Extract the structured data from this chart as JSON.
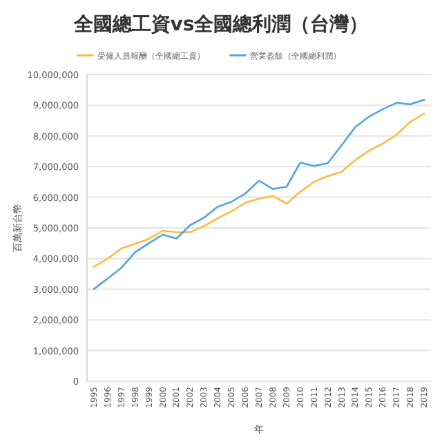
{
  "chart_data": {
    "type": "line",
    "title": "全國總工資vs全國總利潤（台灣）",
    "xlabel": "年",
    "ylabel": "百萬新台幣",
    "categories": [
      "1995",
      "1996",
      "1997",
      "1998",
      "1999",
      "2000",
      "2001",
      "2002",
      "2003",
      "2004",
      "2005",
      "2006",
      "2007",
      "2008",
      "2009",
      "2010",
      "2011",
      "2012",
      "2013",
      "2014",
      "2015",
      "2016",
      "2017",
      "2018",
      "2019"
    ],
    "series": [
      {
        "name": "受僱人員報酬（全國總工資）",
        "color": "#f9bd3f",
        "values": [
          3730000,
          4000000,
          4330000,
          4480000,
          4640000,
          4910000,
          4860000,
          4860000,
          5060000,
          5320000,
          5540000,
          5820000,
          5950000,
          6040000,
          5790000,
          6180000,
          6500000,
          6690000,
          6830000,
          7210000,
          7520000,
          7750000,
          8040000,
          8460000,
          8730000
        ]
      },
      {
        "name": "營業盈餘（全國總利潤）",
        "color": "#4ea5e3",
        "values": [
          3010000,
          3350000,
          3700000,
          4210000,
          4500000,
          4780000,
          4650000,
          5090000,
          5330000,
          5690000,
          5850000,
          6120000,
          6540000,
          6270000,
          6340000,
          7130000,
          7020000,
          7110000,
          7690000,
          8290000,
          8630000,
          8870000,
          9080000,
          9030000,
          9180000
        ]
      }
    ],
    "ylim": [
      0,
      10000000
    ],
    "yticks": [
      {
        "value": 0,
        "label": "0"
      },
      {
        "value": 1000000,
        "label": "1,000,000"
      },
      {
        "value": 2000000,
        "label": "2,000,000"
      },
      {
        "value": 3000000,
        "label": "3,000,000"
      },
      {
        "value": 4000000,
        "label": "4,000,000"
      },
      {
        "value": 5000000,
        "label": "5,000,000"
      },
      {
        "value": 6000000,
        "label": "6,000,000"
      },
      {
        "value": 7000000,
        "label": "7,000,000"
      },
      {
        "value": 8000000,
        "label": "8,000,000"
      },
      {
        "value": 9000000,
        "label": "9,000,000"
      },
      {
        "value": 10000000,
        "label": "10,000,000"
      }
    ],
    "grid": "y",
    "legend": "top"
  }
}
